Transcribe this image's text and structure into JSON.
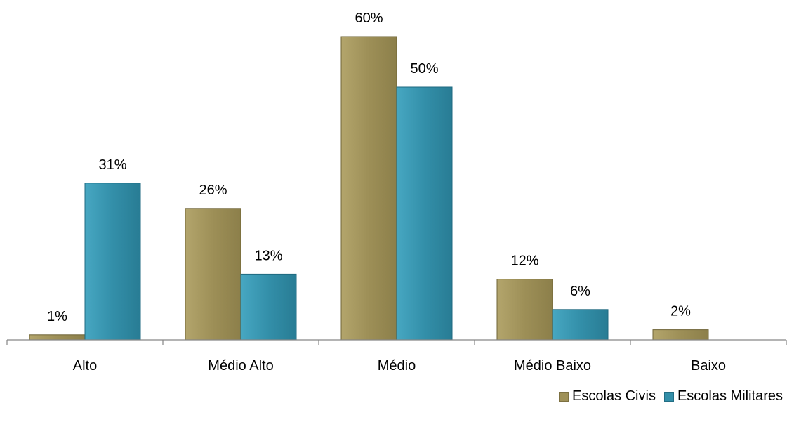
{
  "chart_data": {
    "type": "bar",
    "title": "",
    "xlabel": "",
    "ylabel": "",
    "categories": [
      "Alto",
      "Médio Alto",
      "Médio",
      "Médio Baixo",
      "Baixo"
    ],
    "series": [
      {
        "name": "Escolas Civis",
        "values": [
          1,
          26,
          60,
          12,
          2
        ],
        "labels": [
          "1%",
          "26%",
          "60%",
          "12%",
          "2%"
        ],
        "color": "#9f9158"
      },
      {
        "name": "Escolas Militares",
        "values": [
          31,
          13,
          50,
          6,
          null
        ],
        "labels": [
          "31%",
          "13%",
          "50%",
          "6%",
          ""
        ],
        "color": "#338fa9"
      }
    ],
    "ylim": [
      0,
      65
    ],
    "grid": false,
    "legend_position": "bottom-right"
  }
}
